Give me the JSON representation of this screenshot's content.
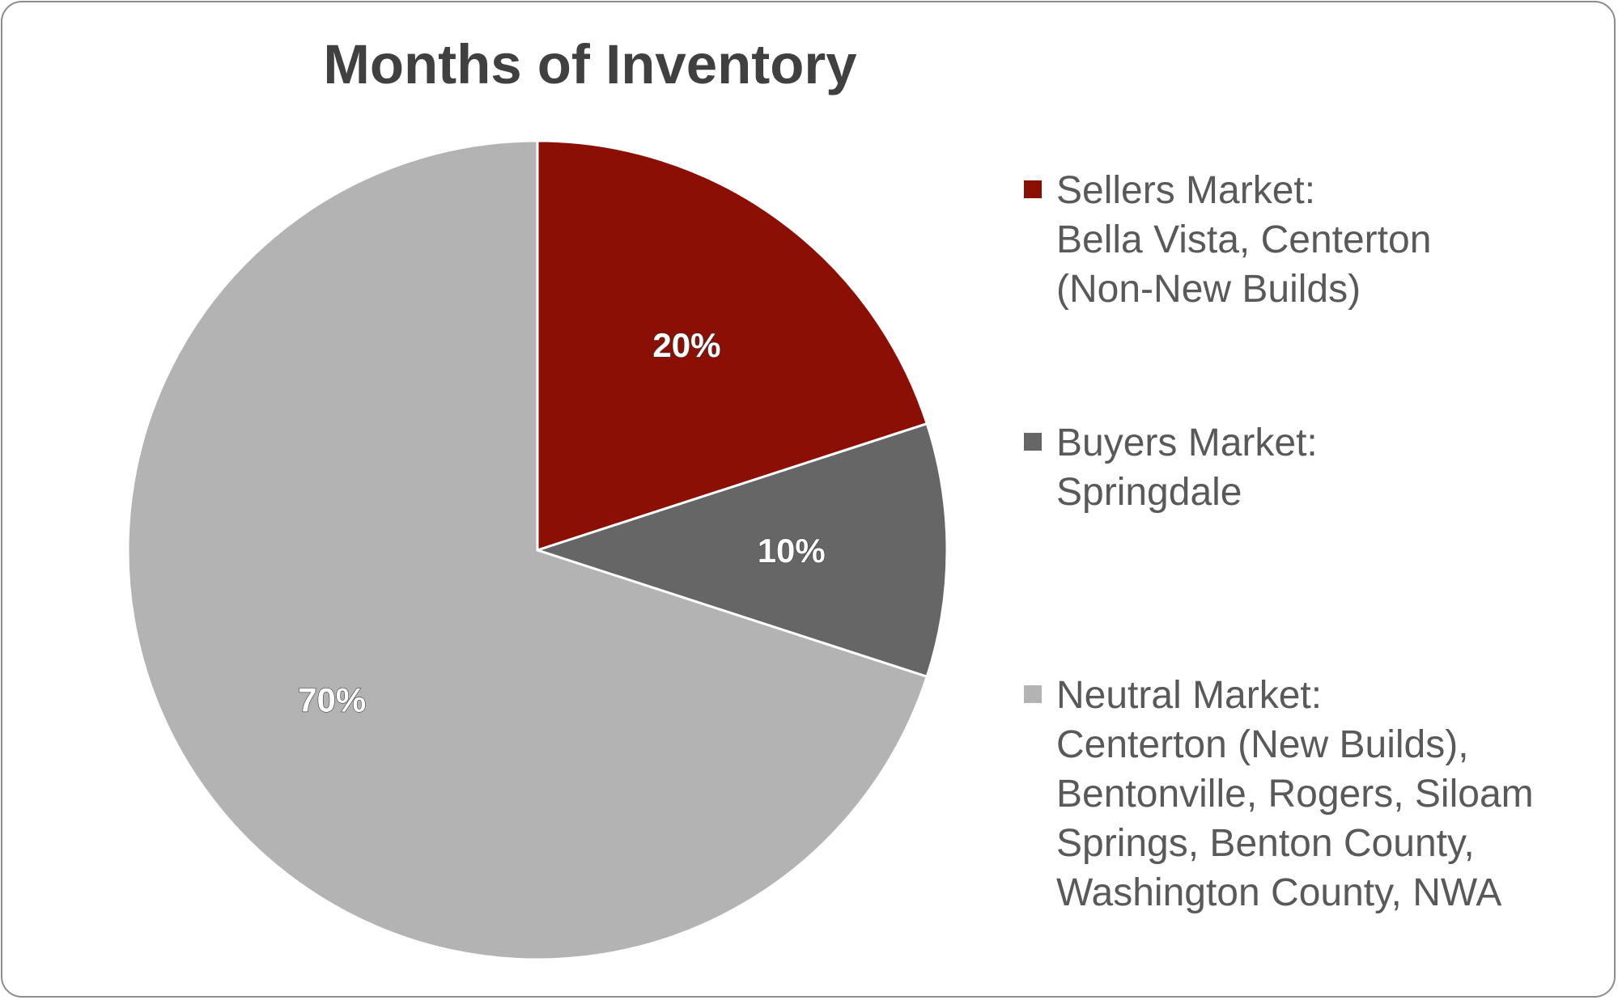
{
  "chart_data": {
    "type": "pie",
    "title": "Months of Inventory",
    "start_angle_deg": 0,
    "direction": "clockwise",
    "slices": [
      {
        "label": "Sellers Market:",
        "detail_lines": [
          " Bella Vista, Centerton",
          "(Non-New Builds)"
        ],
        "value": 20,
        "data_label": "20%",
        "color": "#8B0F04"
      },
      {
        "label": "Buyers Market:",
        "detail_lines": [
          "Springdale"
        ],
        "value": 10,
        "data_label": "10%",
        "color": "#666666"
      },
      {
        "label": "Neutral Market:",
        "detail_lines": [
          "Centerton (New Builds),",
          "Bentonville, Rogers, Siloam",
          "Springs, Benton County,",
          "Washington County, NWA"
        ],
        "value": 70,
        "data_label": "70%",
        "color": "#B3B3B3"
      }
    ],
    "legend_position": "right",
    "slice_border_color": "#ffffff"
  }
}
